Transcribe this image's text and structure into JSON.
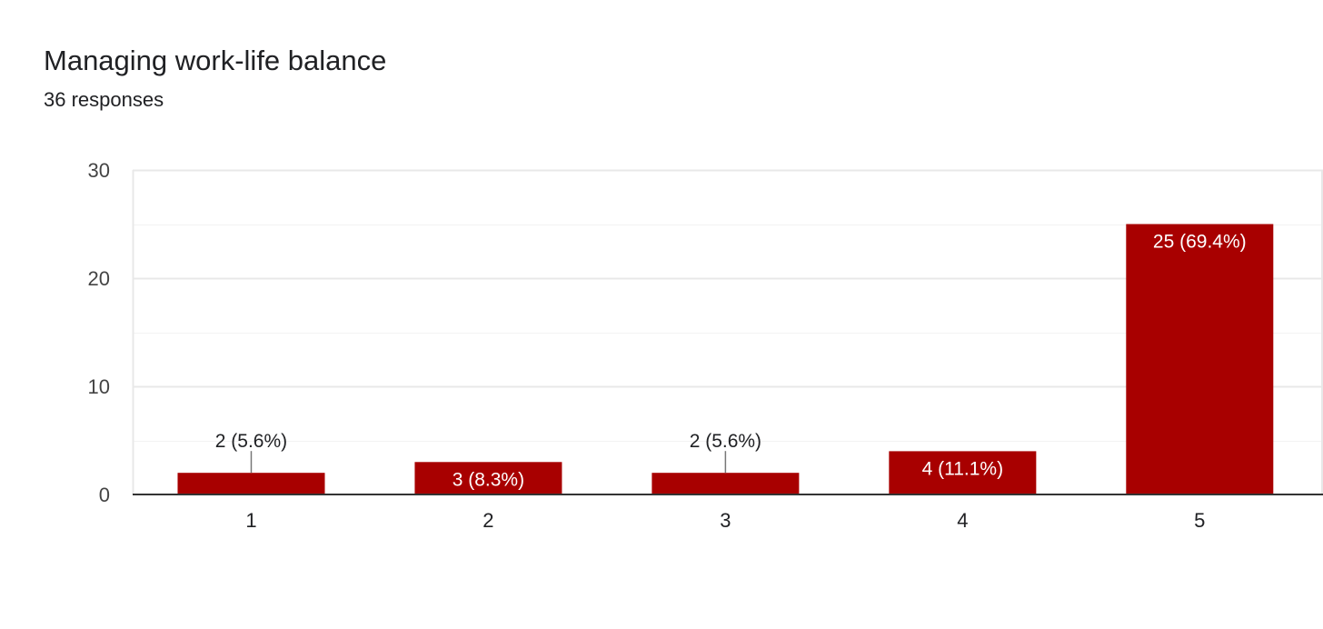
{
  "header": {
    "title": "Managing work-life balance",
    "subtitle": "36 responses"
  },
  "colors": {
    "bar": "#a80000",
    "grid": "#e8e8e8",
    "axis": "#333333",
    "label_dark": "#202124",
    "label_light": "#ffffff"
  },
  "chart_data": {
    "type": "bar",
    "categories": [
      "1",
      "2",
      "3",
      "4",
      "5"
    ],
    "values": [
      2,
      3,
      2,
      4,
      25
    ],
    "data_labels": [
      "2 (5.6%)",
      "3 (8.3%)",
      "2 (5.6%)",
      "4 (11.1%)",
      "25 (69.4%)"
    ],
    "ylim": [
      0,
      30
    ],
    "yticks": [
      0,
      10,
      20,
      30
    ],
    "minor_grid_step": 5,
    "grid": true,
    "legend": "none",
    "xlabel": "",
    "ylabel": ""
  }
}
